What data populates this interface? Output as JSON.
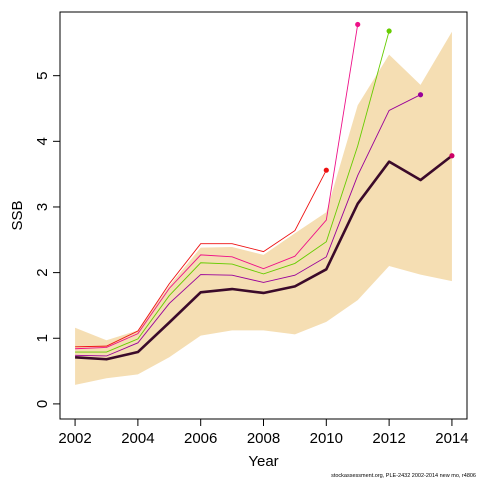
{
  "chart_data": {
    "type": "line",
    "title": "",
    "xlabel": "Year",
    "ylabel": "SSB",
    "xlim": [
      2002,
      2014
    ],
    "ylim": [
      0,
      5.8
    ],
    "x_ticks": [
      "2002",
      "2004",
      "2006",
      "2008",
      "2010",
      "2012",
      "2014"
    ],
    "y_ticks": [
      "0",
      "1",
      "2",
      "3",
      "4",
      "5"
    ],
    "grid": false,
    "legend": "none",
    "colors": {
      "band": "#f5deb3",
      "main": "#3b0a2a"
    },
    "x": [
      2002,
      2003,
      2004,
      2005,
      2006,
      2007,
      2008,
      2009,
      2010,
      2011,
      2012,
      2013,
      2014
    ],
    "confidence_band": {
      "upper": [
        1.16,
        0.97,
        1.12,
        1.8,
        2.38,
        2.39,
        2.27,
        2.6,
        2.92,
        4.55,
        5.32,
        4.86,
        5.67
      ],
      "lower": [
        0.29,
        0.39,
        0.45,
        0.71,
        1.04,
        1.12,
        1.12,
        1.06,
        1.25,
        1.58,
        2.1,
        1.97,
        1.87
      ]
    },
    "main_series": {
      "values": [
        0.71,
        0.68,
        0.79,
        1.24,
        1.7,
        1.75,
        1.69,
        1.79,
        2.05,
        3.05,
        3.69,
        3.41,
        3.78
      ]
    },
    "retrospective_series": [
      {
        "color": "#ee1111",
        "end_year": 2010,
        "values": [
          0.87,
          0.88,
          1.11,
          1.83,
          2.44,
          2.44,
          2.32,
          2.64,
          3.56
        ]
      },
      {
        "color": "#ee1188",
        "end_year": 2011,
        "values": [
          0.84,
          0.86,
          1.07,
          1.76,
          2.27,
          2.24,
          2.06,
          2.25,
          2.8,
          5.78
        ]
      },
      {
        "color": "#66cc00",
        "end_year": 2012,
        "values": [
          0.79,
          0.79,
          0.99,
          1.65,
          2.15,
          2.13,
          1.98,
          2.14,
          2.47,
          3.93,
          5.68
        ]
      },
      {
        "color": "#990099",
        "end_year": 2013,
        "values": [
          0.74,
          0.73,
          0.93,
          1.53,
          1.97,
          1.96,
          1.85,
          1.96,
          2.24,
          3.48,
          4.47,
          4.71
        ]
      }
    ]
  },
  "footer": {
    "text": "stockassessment.org, PLE-2432 2002-2014 new mo, r4806"
  }
}
